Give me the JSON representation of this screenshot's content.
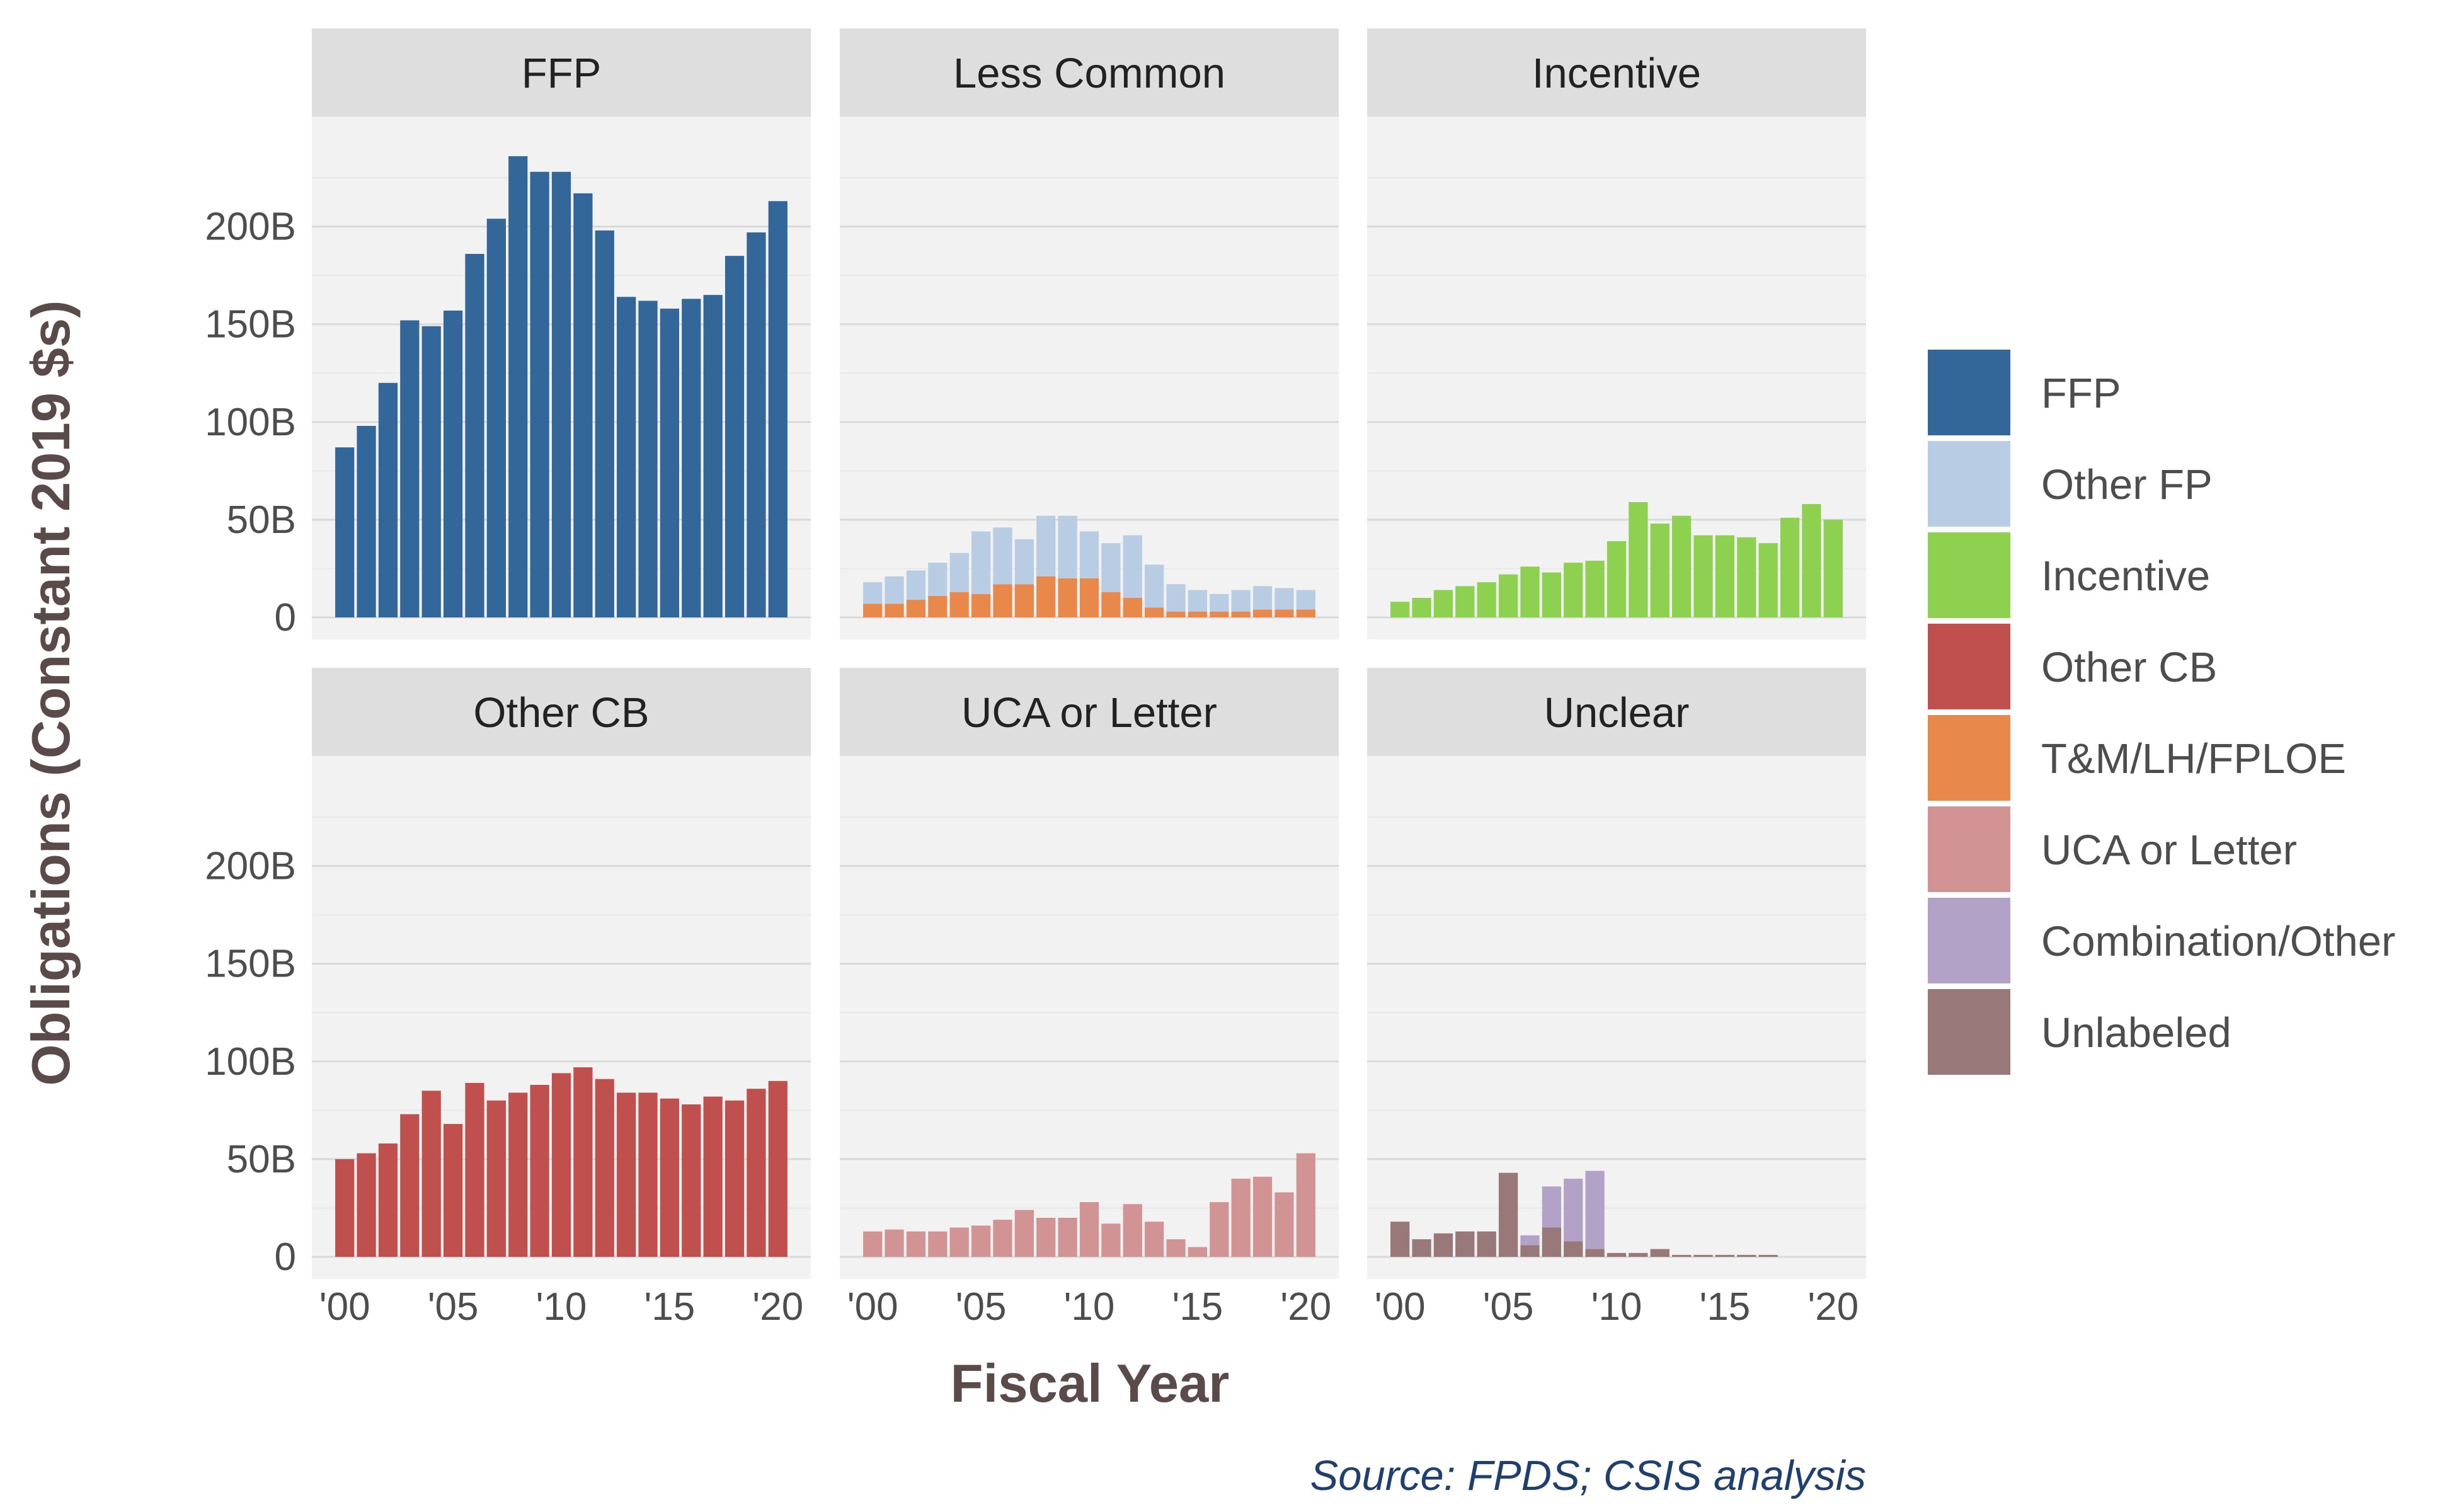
{
  "chart_data": {
    "type": "bar",
    "layout": "facet-grid-stacked",
    "xlabel": "Fiscal Year",
    "ylabel": "Obligations (Constant 2019 $s)",
    "source": "Source: FPDS; CSIS analysis",
    "x": [
      2000,
      2001,
      2002,
      2003,
      2004,
      2005,
      2006,
      2007,
      2008,
      2009,
      2010,
      2011,
      2012,
      2013,
      2014,
      2015,
      2016,
      2017,
      2018,
      2019,
      2020
    ],
    "x_ticks": [
      2000,
      2005,
      2010,
      2015,
      2020
    ],
    "x_tick_labels": [
      "'00",
      "'05",
      "'10",
      "'15",
      "'20"
    ],
    "ylim": [
      0,
      245
    ],
    "y_ticks": [
      0,
      50,
      100,
      150,
      200
    ],
    "y_tick_labels": [
      "0",
      "50B",
      "100B",
      "150B",
      "200B"
    ],
    "grid": true,
    "legend_position": "right",
    "legend": [
      {
        "name": "FFP",
        "color": "#336699"
      },
      {
        "name": "Other FP",
        "color": "#b8cce4"
      },
      {
        "name": "Incentive",
        "color": "#8ed04f"
      },
      {
        "name": "Other CB",
        "color": "#c0504d"
      },
      {
        "name": "T&M/LH/FPLOE",
        "color": "#e8884a"
      },
      {
        "name": "UCA or Letter",
        "color": "#d19393"
      },
      {
        "name": "Combination/Other",
        "color": "#b3a2c7"
      },
      {
        "name": "Unlabeled",
        "color": "#987878"
      }
    ],
    "panels": [
      {
        "title": "FFP",
        "series": [
          {
            "name": "FFP",
            "values": [
              87,
              98,
              120,
              152,
              149,
              157,
              186,
              204,
              236,
              228,
              228,
              217,
              198,
              164,
              162,
              158,
              163,
              165,
              185,
              197,
              213
            ]
          }
        ]
      },
      {
        "title": "Less Common",
        "series": [
          {
            "name": "T&M/LH/FPLOE",
            "values": [
              7,
              7,
              9,
              11,
              13,
              12,
              17,
              17,
              21,
              20,
              20,
              13,
              10,
              5,
              3,
              3,
              3,
              3,
              4,
              4,
              4
            ]
          },
          {
            "name": "Other FP",
            "values": [
              11,
              14,
              15,
              17,
              20,
              32,
              29,
              23,
              31,
              32,
              24,
              25,
              32,
              22,
              14,
              11,
              9,
              11,
              12,
              11,
              10
            ]
          }
        ]
      },
      {
        "title": "Incentive",
        "series": [
          {
            "name": "Incentive",
            "values": [
              8,
              10,
              14,
              16,
              18,
              22,
              26,
              23,
              28,
              29,
              39,
              59,
              48,
              52,
              42,
              42,
              41,
              38,
              51,
              58,
              50
            ]
          }
        ]
      },
      {
        "title": "Other CB",
        "series": [
          {
            "name": "Other CB",
            "values": [
              50,
              53,
              58,
              73,
              85,
              68,
              89,
              80,
              84,
              88,
              94,
              97,
              91,
              84,
              84,
              81,
              78,
              82,
              80,
              86,
              90
            ]
          }
        ]
      },
      {
        "title": "UCA or Letter",
        "series": [
          {
            "name": "UCA or Letter",
            "values": [
              13,
              14,
              13,
              13,
              15,
              16,
              19,
              24,
              20,
              20,
              28,
              17,
              27,
              18,
              9,
              5,
              28,
              40,
              41,
              33,
              53
            ]
          }
        ]
      },
      {
        "title": "Unclear",
        "series": [
          {
            "name": "Unlabeled",
            "values": [
              18,
              9,
              12,
              13,
              13,
              43,
              6,
              15,
              8,
              4,
              2,
              2,
              4,
              1,
              1,
              1,
              1,
              1,
              0,
              0,
              0
            ]
          },
          {
            "name": "Combination/Other",
            "values": [
              0,
              0,
              0,
              0,
              0,
              0,
              5,
              21,
              32,
              40,
              0,
              0,
              0,
              0,
              0,
              0,
              0,
              0,
              0,
              0,
              0
            ]
          }
        ]
      }
    ]
  }
}
